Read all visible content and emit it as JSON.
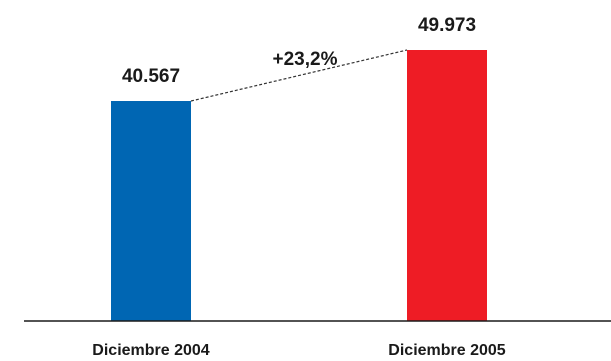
{
  "chart_data": {
    "type": "bar",
    "categories": [
      "Diciembre 2004",
      "Diciembre 2005"
    ],
    "values": [
      40567,
      49973
    ],
    "value_labels": [
      "40.567",
      "49.973"
    ],
    "colors": [
      "#0066b3",
      "#ee1c25"
    ],
    "annotation": "+23,2%",
    "title": "",
    "xlabel": "",
    "ylabel": "",
    "ylim": [
      0,
      49973
    ],
    "grid": false,
    "legend": "none"
  }
}
